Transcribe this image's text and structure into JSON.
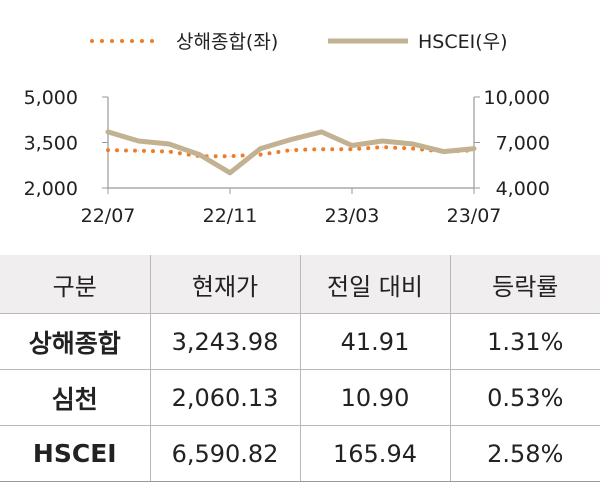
{
  "chart_data": {
    "type": "line",
    "x_ticks": [
      "22/07",
      "22/11",
      "23/03",
      "23/07"
    ],
    "y_left": {
      "ticks": [
        "5,000",
        "3,500",
        "2,000"
      ],
      "range": [
        2000,
        5000
      ]
    },
    "y_right": {
      "ticks": [
        "10,000",
        "7,000",
        "4,000"
      ],
      "range": [
        4000,
        10000
      ]
    },
    "legend_position": "top",
    "grid": false,
    "series": [
      {
        "name": "상해종합(좌)",
        "axis": "left",
        "style": "dotted",
        "color": "#ee7d2b",
        "x": [
          "22/07",
          "22/08",
          "22/09",
          "22/10",
          "22/11",
          "22/12",
          "23/01",
          "23/02",
          "23/03",
          "23/04",
          "23/05",
          "23/06",
          "23/07"
        ],
        "values": [
          3250,
          3230,
          3200,
          3050,
          3050,
          3100,
          3250,
          3280,
          3280,
          3350,
          3300,
          3200,
          3240
        ]
      },
      {
        "name": "HSCEI(우)",
        "axis": "right",
        "style": "solid",
        "color": "#c2b291",
        "x": [
          "22/07",
          "22/08",
          "22/09",
          "22/10",
          "22/11",
          "22/12",
          "23/01",
          "23/02",
          "23/03",
          "23/04",
          "23/05",
          "23/06",
          "23/07"
        ],
        "values": [
          7700,
          7100,
          6900,
          6200,
          5000,
          6600,
          7200,
          7700,
          6800,
          7100,
          6900,
          6400,
          6600
        ]
      }
    ]
  },
  "table": {
    "headers": [
      "구분",
      "현재가",
      "전일 대비",
      "등락률"
    ],
    "rows": [
      [
        "상해종합",
        "3,243.98",
        "41.91",
        "1.31%"
      ],
      [
        "심천",
        "2,060.13",
        "10.90",
        "0.53%"
      ],
      [
        "HSCEI",
        "6,590.82",
        "165.94",
        "2.58%"
      ]
    ]
  }
}
